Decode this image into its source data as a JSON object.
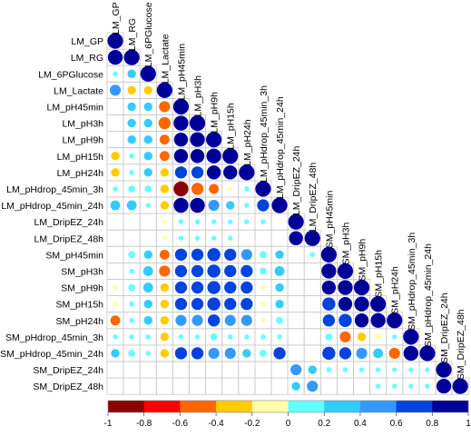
{
  "chart_data": {
    "type": "heatmap",
    "variables": [
      "LM_GP",
      "LM_RG",
      "LM_6PGlucose",
      "LM_Lactate",
      "LM_pH45min",
      "LM_pH3h",
      "LM_pH9h",
      "LM_pH15h",
      "LM_pH24h",
      "LM_pHdrop_45min_3h",
      "LM_pHdrop_45min_24h",
      "LM_DripEZ_24h",
      "LM_DripEZ_48h",
      "SM_pH45min",
      "SM_pH3h",
      "SM_pH9h",
      "SM_pH15h",
      "SM_pH24h",
      "SM_pHdrop_45min_3h",
      "SM_pHdrop_45min_24h",
      "SM_DripEZ_24h",
      "SM_DripEZ_48h"
    ],
    "matrix_lower": [
      [
        1
      ],
      [
        0.9,
        1
      ],
      [
        0.1,
        0.3,
        1
      ],
      [
        0.5,
        -0.3,
        -0.3,
        1
      ],
      [
        0,
        0.3,
        0.3,
        -0.5,
        1
      ],
      [
        0,
        0.3,
        0.3,
        -0.6,
        0.9,
        1
      ],
      [
        0,
        0.3,
        0.3,
        -0.4,
        0.8,
        0.9,
        1
      ],
      [
        -0.3,
        0.1,
        0.3,
        -0.4,
        0.8,
        0.8,
        0.9,
        1
      ],
      [
        -0.3,
        0.1,
        0.3,
        -0.3,
        0.6,
        0.6,
        0.8,
        0.8,
        1
      ],
      [
        0.1,
        0.2,
        0.2,
        -0.3,
        -0.9,
        -0.6,
        -0.4,
        -0.1,
        0.1,
        1
      ],
      [
        0.4,
        0.4,
        0.1,
        -0.3,
        0.9,
        0.9,
        0.5,
        0.3,
        0.1,
        0.6,
        1
      ],
      [
        0,
        0,
        0,
        -0.1,
        0.1,
        0.1,
        0.1,
        0.1,
        0.1,
        0.1,
        0,
        1
      ],
      [
        0,
        0,
        0,
        -0.1,
        0.1,
        0.1,
        0.1,
        0.1,
        0,
        0,
        0,
        0.8,
        1
      ],
      [
        0,
        0.2,
        0.3,
        -0.4,
        0.6,
        0.6,
        0.7,
        0.6,
        0.5,
        0.2,
        0.3,
        0,
        0.1,
        1
      ],
      [
        0,
        0.1,
        0.4,
        -0.5,
        0.6,
        0.6,
        0.7,
        0.6,
        0.6,
        0.2,
        0.4,
        0,
        0,
        0.9,
        1
      ],
      [
        -0.1,
        0.2,
        0.4,
        -0.3,
        0.6,
        0.6,
        0.7,
        0.6,
        0.6,
        -0.1,
        0.3,
        0,
        0,
        0.8,
        0.9,
        1
      ],
      [
        -0.1,
        0.1,
        0.3,
        -0.3,
        0.6,
        0.6,
        0.7,
        0.6,
        0.6,
        -0.1,
        0.3,
        0,
        0,
        0.7,
        0.8,
        0.9,
        1
      ],
      [
        -0.4,
        0.1,
        0.3,
        -0.3,
        0.5,
        0.5,
        0.6,
        0.5,
        0.5,
        -0.1,
        0.2,
        0,
        0,
        0.6,
        0.7,
        0.8,
        0.9,
        1
      ],
      [
        0.1,
        0.1,
        0.1,
        -0.3,
        0.1,
        0.1,
        0.2,
        0.1,
        0.1,
        0.1,
        0.1,
        0,
        0,
        0.2,
        -0.5,
        -0.3,
        -0.2,
        0.1,
        1
      ],
      [
        0.3,
        0.2,
        0.1,
        -0.3,
        0.6,
        0.6,
        0.5,
        0.5,
        0.3,
        0.2,
        0.6,
        0,
        0,
        0.7,
        0.6,
        0.5,
        0.4,
        -0.5,
        0.9,
        1
      ],
      [
        0,
        0,
        0,
        0,
        0,
        0,
        0,
        0,
        0,
        0,
        0,
        0.5,
        0.3,
        0.1,
        0.1,
        0.1,
        0.1,
        0.1,
        0.1,
        0.1,
        1
      ],
      [
        0,
        0,
        0,
        0,
        0,
        0,
        0,
        0,
        0,
        0,
        0,
        0.3,
        0.5,
        0,
        0,
        0,
        0.1,
        0.1,
        0.1,
        0.1,
        0.9,
        1
      ]
    ],
    "colorbar": {
      "ticks": [
        "-1",
        "-0.8",
        "-0.6",
        "-0.4",
        "-0.2",
        "0",
        "0.2",
        "0.4",
        "0.6",
        "0.8",
        "1"
      ],
      "colors": [
        "#8B0000",
        "#FF0000",
        "#FF6600",
        "#FFCC00",
        "#FFFFAA",
        "#66FFFF",
        "#33CCFF",
        "#3399FF",
        "#0044DD",
        "#000099"
      ]
    }
  }
}
